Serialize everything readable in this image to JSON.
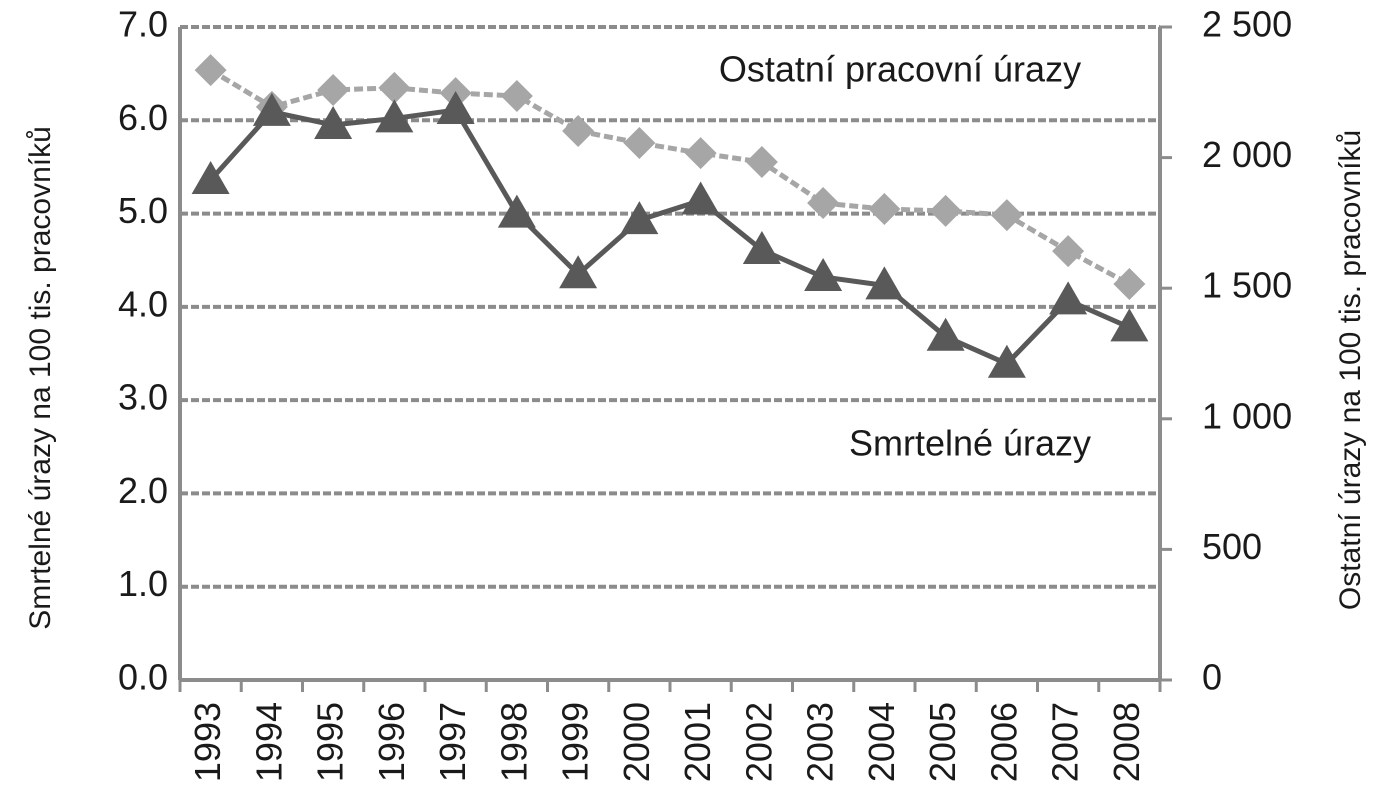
{
  "chart_data": {
    "type": "line",
    "categories": [
      "1993",
      "1994",
      "1995",
      "1996",
      "1997",
      "1998",
      "1999",
      "2000",
      "2001",
      "2002",
      "2003",
      "2004",
      "2005",
      "2006",
      "2007",
      "2008"
    ],
    "series": [
      {
        "name": "Smrtelné úrazy",
        "color": "#595959",
        "marker": "triangle",
        "axis": "y",
        "values": [
          5.36,
          6.09,
          5.95,
          6.02,
          6.11,
          5.0,
          4.35,
          4.93,
          5.14,
          4.61,
          4.32,
          4.23,
          3.68,
          3.39,
          4.07,
          3.78
        ]
      },
      {
        "name": "Ostatní pracovní úrazy",
        "color": "#a6a6a6",
        "marker": "diamond",
        "dashed": true,
        "axis": "y2",
        "values": [
          2335,
          2194,
          2259,
          2267,
          2247,
          2236,
          2102,
          2056,
          2017,
          1983,
          1826,
          1803,
          1796,
          1780,
          1642,
          1516
        ]
      }
    ],
    "ylabel": "Smrtelné úrazy na 100 tis. pracovníků",
    "y2label": "Ostatní úrazy na 100 tis. pracovníků",
    "ylim": [
      0,
      7
    ],
    "yticks": [
      {
        "value": 0,
        "label": "0.0"
      },
      {
        "value": 1,
        "label": "1.0"
      },
      {
        "value": 2,
        "label": "2.0"
      },
      {
        "value": 3,
        "label": "3.0"
      },
      {
        "value": 4,
        "label": "4.0"
      },
      {
        "value": 5,
        "label": "5.0"
      },
      {
        "value": 6,
        "label": "6.0"
      },
      {
        "value": 7,
        "label": "7.0"
      }
    ],
    "y2lim": [
      0,
      2500
    ],
    "y2ticks": [
      0,
      500,
      {
        "value": 1000,
        "label": "1 000"
      },
      {
        "value": 1500,
        "label": "1 500"
      },
      {
        "value": 2000,
        "label": "2 000"
      },
      {
        "value": 2500,
        "label": "2 500"
      }
    ],
    "grid": true
  }
}
